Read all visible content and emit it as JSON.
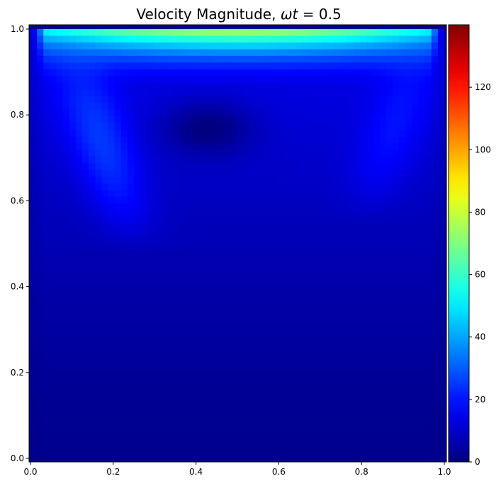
{
  "figure": {
    "title_prefix": "Velocity Magnitude, ",
    "title_symbol": "ωt",
    "title_suffix": " = 0.5"
  },
  "chart_data": {
    "type": "heatmap",
    "title": "Velocity Magnitude, ωt = 0.5",
    "xlabel": "",
    "ylabel": "",
    "xlim": [
      0.0,
      1.0
    ],
    "ylim": [
      0.0,
      1.0
    ],
    "grid": false,
    "colormap": "jet",
    "colorbar": {
      "vmin": 0,
      "vmax": 140,
      "ticks": [
        0,
        20,
        40,
        60,
        80,
        100,
        120
      ]
    },
    "x_ticks": [
      "0.0",
      "0.2",
      "0.4",
      "0.6",
      "0.8",
      "1.0"
    ],
    "y_ticks": [
      "0.0",
      "0.2",
      "0.4",
      "0.6",
      "0.8",
      "1.0"
    ],
    "resolution": [
      64,
      64
    ],
    "features": {
      "lid_band": {
        "y_top": 1.0,
        "y_bottom": 0.93,
        "peak_value": 80,
        "x_start": 0.03,
        "x_end": 0.97
      },
      "vortex_center": {
        "x": 0.43,
        "y": 0.77,
        "value": 3
      },
      "left_jet_value": 30,
      "right_jet_value": 22,
      "bottom_value": 2
    }
  }
}
